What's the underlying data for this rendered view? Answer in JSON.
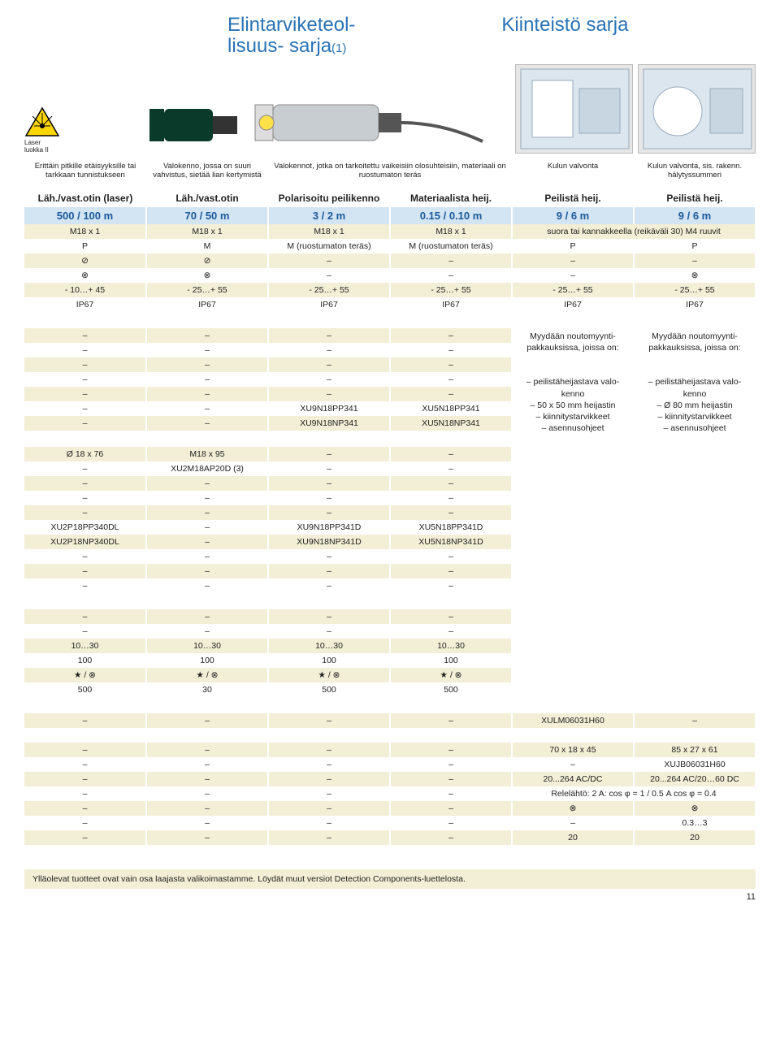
{
  "titles": {
    "left_line1": "Elintarviketeol-",
    "left_line2": "lisuus-",
    "left_suffix": " sarja",
    "left_small": "(1)",
    "right": "Kiinteistö sarja"
  },
  "laser": {
    "line1": "Laser",
    "line2": "luokka II"
  },
  "columns_header": [
    {
      "desc": "Erittäin pitkille etäisyyksille tai tarkkaan tunnistukseen",
      "type": "Läh./vast.otin (laser)"
    },
    {
      "desc": "Valokenno, jossa on suuri vahvistus, sietää lian kertymistä",
      "type": "Läh./vast.otin"
    },
    {
      "desc": "Valokennot, jotka on tarkoitettu vaikeisiin olosuhteisiin, materiaali on ruostumaton teräs",
      "type_a": "Polarisoitu peilikenno",
      "type_b": "Materiaalista heij."
    },
    {
      "desc": "Kulun valvonta",
      "type": "Peilistä heij."
    },
    {
      "desc": "Kulun valvonta, sis. rakenn. hälytyssummeri",
      "type": "Peilistä heij."
    }
  ],
  "spec1": {
    "range": [
      "500 / 100 m",
      "70 / 50 m",
      "3 / 2 m",
      "0.15 / 0.10 m",
      "9 / 6 m",
      "9 / 6 m"
    ],
    "mount": [
      "M18 x 1",
      "M18 x 1",
      "M18 x 1",
      "M18 x 1",
      "suora tai kannakkeella (reikäväli 30) M4 ruuvit"
    ],
    "mat": [
      "P",
      "M",
      "M (ruostumaton teräs)",
      "M (ruostumaton teräs)",
      "P",
      "P"
    ],
    "r1": [
      "⊘",
      "⊘",
      "–",
      "–",
      "–",
      "–"
    ],
    "r2": [
      "⊗",
      "⊗",
      "–",
      "–",
      "–",
      "⊗"
    ],
    "temp": [
      "- 10…+ 45",
      "- 25…+ 55",
      "- 25…+ 55",
      "- 25…+ 55",
      "- 25…+ 55",
      "- 25…+ 55"
    ],
    "ip": [
      "IP67",
      "IP67",
      "IP67",
      "IP67",
      "IP67",
      "IP67"
    ]
  },
  "spec2_rows": [
    [
      "–",
      "–",
      "–",
      "–"
    ],
    [
      "–",
      "–",
      "–",
      "–"
    ],
    [
      "–",
      "–",
      "–",
      "–"
    ],
    [
      "–",
      "–",
      "–",
      "–"
    ],
    [
      "–",
      "–",
      "–",
      "–"
    ],
    [
      "–",
      "–",
      "XU9N18PP341",
      "XU5N18PP341"
    ],
    [
      "–",
      "–",
      "XU9N18NP341",
      "XU5N18NP341"
    ]
  ],
  "notes_col5": [
    "Myydään noutomyynti-",
    "pakkauksissa, joissa on:",
    "",
    "– peilistäheijastava valo-",
    "  kenno",
    "– 50 x 50 mm heijastin",
    "– kiinnitystarvikkeet",
    "– asennusohjeet"
  ],
  "notes_col6": [
    "Myydään noutomyynti-",
    "pakkauksissa, joissa on:",
    "",
    "– peilistäheijastava valo-",
    "  kenno",
    "– Ø 80 mm heijastin",
    "– kiinnitystarvikkeet",
    "– asennusohjeet"
  ],
  "spec3_rows": [
    [
      "Ø 18 x 76",
      "M18 x 95",
      "–",
      "–"
    ],
    [
      "–",
      "XU2M18AP20D (3)",
      "–",
      "–"
    ],
    [
      "–",
      "–",
      "–",
      "–"
    ],
    [
      "–",
      "–",
      "–",
      "–"
    ],
    [
      "–",
      "–",
      "–",
      "–"
    ],
    [
      "XU2P18PP340DL",
      "–",
      "XU9N18PP341D",
      "XU5N18PP341D"
    ],
    [
      "XU2P18NP340DL",
      "–",
      "XU9N18NP341D",
      "XU5N18NP341D"
    ],
    [
      "–",
      "–",
      "–",
      "–"
    ],
    [
      "–",
      "–",
      "–",
      "–"
    ],
    [
      "–",
      "–",
      "–",
      "–"
    ]
  ],
  "spec4_rows": [
    [
      "–",
      "–",
      "–",
      "–"
    ],
    [
      "–",
      "–",
      "–",
      "–"
    ],
    [
      "10…30",
      "10…30",
      "10…30",
      "10…30"
    ],
    [
      "100",
      "100",
      "100",
      "100"
    ],
    [
      "★ / ⊗",
      "★ / ⊗",
      "★ / ⊗",
      "★ / ⊗"
    ],
    [
      "500",
      "30",
      "500",
      "500"
    ]
  ],
  "spec5_rows": [
    [
      "–",
      "–",
      "–",
      "–",
      "XULM06031H60",
      "–"
    ],
    [
      "",
      "",
      "",
      "",
      "",
      ""
    ],
    [
      "–",
      "–",
      "–",
      "–",
      "70 x 18 x 45",
      "85 x 27 x 61"
    ],
    [
      "–",
      "–",
      "–",
      "–",
      "–",
      "XUJB06031H60"
    ],
    [
      "–",
      "–",
      "–",
      "–",
      "20...264 AC/DC",
      "20...264 AC/20…60 DC"
    ],
    [
      "–",
      "–",
      "–",
      "–",
      "Relelähtö: 2 A: cos φ = 1 / 0.5 A cos φ = 0.4"
    ],
    [
      "–",
      "–",
      "–",
      "–",
      "⊗",
      "⊗"
    ],
    [
      "–",
      "–",
      "–",
      "–",
      "–",
      "0.3…3"
    ],
    [
      "–",
      "–",
      "–",
      "–",
      "20",
      "20"
    ]
  ],
  "footer": "Ylläolevat tuotteet ovat vain osa laajasta valikoimastamme. Löydät muut versiot Detection Components-luettelosta.",
  "page_number": "11",
  "colors": {
    "blue_header": "#2a73b5",
    "row_blue": "#d3e4f3",
    "row_beige": "#f3eed6",
    "text_blue": "#1a5a9a"
  }
}
